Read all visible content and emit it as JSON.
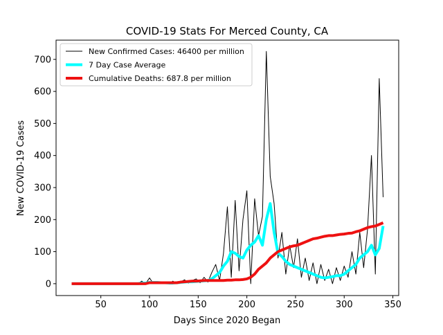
{
  "chart_data": {
    "type": "line",
    "title": "COVID-19 Stats For Merced County, CA",
    "x_label": "Days Since 2020 Began",
    "y_label": "New COVID-19 Cases",
    "x": [
      20,
      24,
      28,
      32,
      36,
      40,
      44,
      48,
      52,
      56,
      60,
      64,
      68,
      72,
      76,
      80,
      84,
      88,
      92,
      96,
      100,
      104,
      108,
      112,
      116,
      120,
      124,
      128,
      132,
      136,
      140,
      144,
      148,
      152,
      156,
      160,
      164,
      168,
      172,
      176,
      180,
      184,
      188,
      192,
      196,
      200,
      204,
      208,
      212,
      216,
      220,
      224,
      228,
      232,
      236,
      240,
      244,
      248,
      252,
      256,
      260,
      264,
      268,
      272,
      276,
      280,
      284,
      288,
      292,
      296,
      300,
      304,
      308,
      312,
      316,
      320,
      324,
      328,
      332,
      336,
      340
    ],
    "series": [
      {
        "name": "New Confirmed Cases: 46400 per million",
        "color": "#000000",
        "width": 1,
        "values": [
          0,
          0,
          0,
          0,
          0,
          0,
          0,
          0,
          0,
          0,
          0,
          0,
          0,
          0,
          0,
          0,
          0,
          0,
          8,
          0,
          18,
          0,
          5,
          0,
          3,
          0,
          8,
          0,
          6,
          12,
          2,
          10,
          15,
          3,
          20,
          5,
          35,
          60,
          10,
          95,
          240,
          20,
          260,
          40,
          200,
          290,
          0,
          265,
          150,
          210,
          725,
          335,
          250,
          80,
          160,
          30,
          120,
          50,
          140,
          20,
          80,
          10,
          65,
          0,
          60,
          10,
          45,
          0,
          50,
          10,
          55,
          20,
          100,
          30,
          160,
          50,
          170,
          400,
          30,
          640,
          270
        ]
      },
      {
        "name": "7 Day Case Average",
        "color": "#00ffff",
        "width": 4,
        "values": [
          0,
          0,
          0,
          0,
          0,
          0,
          0,
          0,
          0,
          0,
          0,
          0,
          0,
          0,
          0,
          0,
          0,
          0,
          2,
          2,
          4,
          4,
          4,
          3,
          3,
          2,
          2,
          3,
          4,
          5,
          6,
          6,
          7,
          8,
          9,
          10,
          15,
          25,
          35,
          55,
          70,
          100,
          95,
          85,
          80,
          105,
          120,
          130,
          150,
          120,
          200,
          250,
          160,
          95,
          85,
          70,
          60,
          55,
          50,
          45,
          40,
          35,
          30,
          25,
          20,
          18,
          20,
          22,
          25,
          25,
          30,
          40,
          50,
          60,
          80,
          90,
          100,
          120,
          90,
          110,
          180
        ]
      },
      {
        "name": "Cumulative Deaths: 687.8 per million",
        "color": "#ee1111",
        "width": 4,
        "values": [
          0,
          0,
          0,
          0,
          0,
          0,
          0,
          0,
          0,
          0,
          0,
          0,
          0,
          0,
          0,
          0,
          0,
          0,
          0,
          0,
          3,
          3,
          3,
          3,
          3,
          3,
          3,
          3,
          5,
          6,
          7,
          8,
          8,
          9,
          10,
          10,
          10,
          10,
          10,
          10,
          11,
          11,
          12,
          12,
          13,
          15,
          20,
          30,
          45,
          55,
          65,
          80,
          90,
          100,
          105,
          110,
          115,
          118,
          120,
          125,
          130,
          135,
          140,
          142,
          145,
          148,
          150,
          150,
          152,
          154,
          155,
          157,
          158,
          162,
          165,
          170,
          175,
          178,
          180,
          185,
          190
        ]
      }
    ],
    "xlim": [
      4,
      356
    ],
    "ylim": [
      -37,
      760
    ],
    "xticks": [
      50,
      100,
      150,
      200,
      250,
      300,
      350
    ],
    "yticks": [
      0,
      100,
      200,
      300,
      400,
      500,
      600,
      700
    ],
    "legend": "upper left"
  }
}
